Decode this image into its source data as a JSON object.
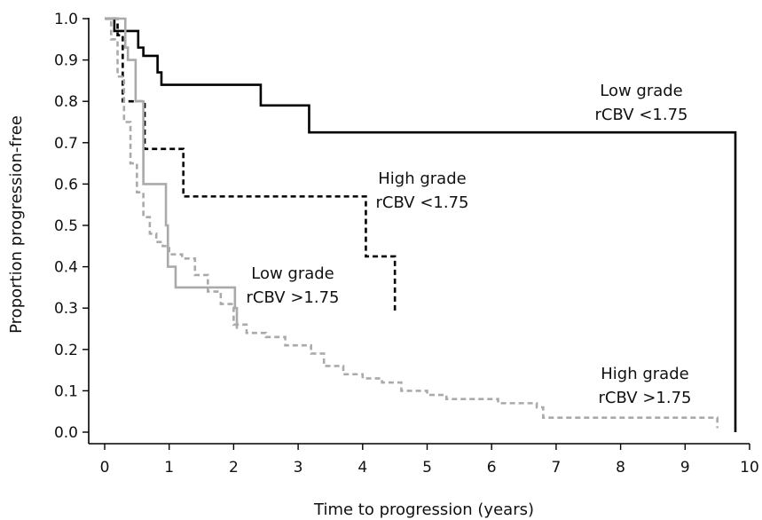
{
  "chart_data": {
    "type": "line",
    "step": true,
    "xlabel": "Time to progression (years)",
    "ylabel": "Proportion progression-free",
    "xlim": [
      0,
      10
    ],
    "ylim": [
      0,
      1.0
    ],
    "xticks": [
      "0",
      "1",
      "2",
      "3",
      "4",
      "5",
      "6",
      "7",
      "8",
      "9",
      "10"
    ],
    "yticks": [
      "0.0",
      "0.1",
      "0.2",
      "0.3",
      "0.4",
      "0.5",
      "0.6",
      "0.7",
      "0.8",
      "0.9",
      "1.0"
    ],
    "grid": false,
    "series": [
      {
        "name_lines": [
          "Low grade",
          "rCBV <1.75"
        ],
        "color": "#000000",
        "dash": "solid",
        "x": [
          0,
          0.15,
          0.52,
          0.6,
          0.82,
          0.88,
          2.42,
          3.17,
          9.78,
          9.78
        ],
        "y": [
          1.0,
          0.97,
          0.93,
          0.91,
          0.87,
          0.84,
          0.79,
          0.725,
          0.725,
          0.0
        ]
      },
      {
        "name_lines": [
          "High grade",
          "rCBV <1.75"
        ],
        "color": "#000000",
        "dash": "dashed",
        "x": [
          0,
          0.2,
          0.28,
          0.6,
          0.62,
          1.2,
          1.22,
          4.0,
          4.05,
          4.5,
          4.5
        ],
        "y": [
          1.0,
          0.96,
          0.8,
          0.8,
          0.685,
          0.685,
          0.57,
          0.57,
          0.425,
          0.425,
          0.29
        ]
      },
      {
        "name_lines": [
          "Low grade",
          "rCBV >1.75"
        ],
        "color": "#aaaaaa",
        "dash": "solid",
        "x": [
          0,
          0.32,
          0.36,
          0.48,
          0.6,
          0.95,
          0.98,
          1.1,
          1.5,
          1.7,
          2.02,
          2.05
        ],
        "y": [
          1.0,
          0.93,
          0.9,
          0.8,
          0.6,
          0.5,
          0.4,
          0.35,
          0.35,
          0.35,
          0.3,
          0.25
        ]
      },
      {
        "name_lines": [
          "High grade",
          "rCBV >1.75"
        ],
        "color": "#aaaaaa",
        "dash": "dashed",
        "x": [
          0,
          0.1,
          0.2,
          0.3,
          0.4,
          0.5,
          0.6,
          0.7,
          0.8,
          0.9,
          1.0,
          1.2,
          1.4,
          1.6,
          1.8,
          2.0,
          2.2,
          2.5,
          2.8,
          3.2,
          3.4,
          3.7,
          4.0,
          4.3,
          4.6,
          5.0,
          5.3,
          6.1,
          6.7,
          6.8,
          9.5,
          9.5
        ],
        "y": [
          1.0,
          0.95,
          0.86,
          0.75,
          0.65,
          0.58,
          0.52,
          0.48,
          0.46,
          0.45,
          0.43,
          0.42,
          0.38,
          0.34,
          0.31,
          0.26,
          0.24,
          0.23,
          0.21,
          0.19,
          0.16,
          0.14,
          0.13,
          0.12,
          0.1,
          0.09,
          0.08,
          0.07,
          0.06,
          0.035,
          0.035,
          0.01
        ]
      }
    ]
  }
}
